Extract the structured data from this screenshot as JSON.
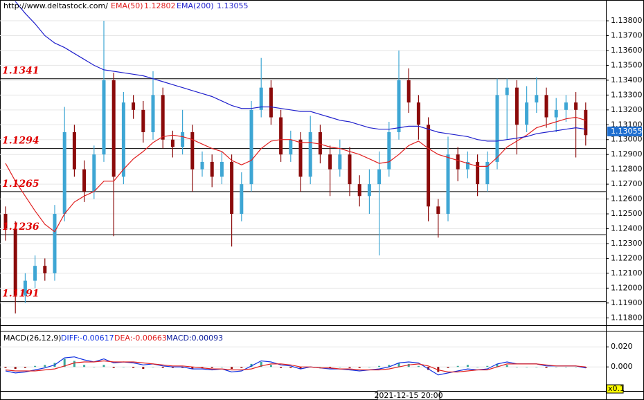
{
  "source": "http://www.deltastock.com/",
  "cursor_time": "2021-12-15 20:00",
  "chart_data": [
    {
      "type": "candlestick",
      "up_color": "#3ea6d4",
      "down_color": "#8b0a0a",
      "open": [
        1.125,
        1.124,
        1.1195,
        1.1205,
        1.1215,
        1.121,
        1.125,
        1.1305,
        1.128,
        1.1265,
        1.129,
        1.134,
        1.1275,
        1.1325,
        1.132,
        1.1305,
        1.133,
        1.13,
        1.1295,
        1.1305,
        1.128,
        1.1285,
        1.1275,
        1.1285,
        1.125,
        1.127,
        1.132,
        1.1335,
        1.1315,
        1.129,
        1.13,
        1.1275,
        1.1305,
        1.129,
        1.128,
        1.129,
        1.127,
        1.1262,
        1.127,
        1.128,
        1.1305,
        1.134,
        1.1325,
        1.131,
        1.1255,
        1.125,
        1.129,
        1.128,
        1.1285,
        1.127,
        1.1285,
        1.133,
        1.1335,
        1.131,
        1.1325,
        1.133,
        1.1315,
        1.132,
        1.1325,
        1.132
      ],
      "high": [
        1.1255,
        1.1245,
        1.121,
        1.1222,
        1.122,
        1.1256,
        1.1322,
        1.131,
        1.1286,
        1.1296,
        1.138,
        1.1345,
        1.1332,
        1.133,
        1.1326,
        1.1346,
        1.1335,
        1.1306,
        1.132,
        1.131,
        1.1292,
        1.129,
        1.1292,
        1.129,
        1.1278,
        1.1326,
        1.1355,
        1.134,
        1.132,
        1.1306,
        1.1305,
        1.1316,
        1.131,
        1.1296,
        1.13,
        1.1295,
        1.1276,
        1.128,
        1.1292,
        1.1312,
        1.136,
        1.1348,
        1.133,
        1.1315,
        1.126,
        1.1302,
        1.1295,
        1.1292,
        1.129,
        1.1292,
        1.1341,
        1.1341,
        1.134,
        1.1336,
        1.1342,
        1.1335,
        1.1328,
        1.133,
        1.1332,
        1.1325
      ],
      "low": [
        1.1232,
        1.1183,
        1.119,
        1.12,
        1.1205,
        1.1205,
        1.1245,
        1.1275,
        1.1258,
        1.126,
        1.1285,
        1.1235,
        1.127,
        1.1314,
        1.1298,
        1.13,
        1.1294,
        1.1288,
        1.129,
        1.1265,
        1.1275,
        1.1268,
        1.127,
        1.1228,
        1.1245,
        1.1265,
        1.1315,
        1.131,
        1.1285,
        1.1285,
        1.1265,
        1.127,
        1.1284,
        1.1262,
        1.1275,
        1.1262,
        1.1255,
        1.125,
        1.1222,
        1.1275,
        1.13,
        1.1318,
        1.13,
        1.1245,
        1.1234,
        1.1245,
        1.1272,
        1.1274,
        1.1262,
        1.1265,
        1.128,
        1.13,
        1.129,
        1.1305,
        1.1318,
        1.1308,
        1.1305,
        1.1312,
        1.1288,
        1.1296
      ],
      "close": [
        1.124,
        1.1195,
        1.1205,
        1.1215,
        1.121,
        1.125,
        1.1305,
        1.128,
        1.1265,
        1.129,
        1.134,
        1.1275,
        1.1325,
        1.132,
        1.1305,
        1.133,
        1.13,
        1.1295,
        1.1305,
        1.128,
        1.1285,
        1.1275,
        1.1285,
        1.125,
        1.127,
        1.132,
        1.1335,
        1.1315,
        1.129,
        1.13,
        1.1275,
        1.1305,
        1.129,
        1.128,
        1.129,
        1.127,
        1.1262,
        1.127,
        1.128,
        1.1305,
        1.134,
        1.1325,
        1.131,
        1.1255,
        1.125,
        1.129,
        1.128,
        1.1285,
        1.127,
        1.1285,
        1.133,
        1.1335,
        1.131,
        1.1325,
        1.133,
        1.1315,
        1.132,
        1.1325,
        1.132,
        1.1303
      ],
      "series": [
        {
          "name": "EMA(50)",
          "legend_value": "1.12802",
          "color": "#e02020",
          "values": [
            1.1284,
            1.1272,
            1.1262,
            1.1252,
            1.1243,
            1.1238,
            1.125,
            1.1258,
            1.1262,
            1.1265,
            1.1272,
            1.1272,
            1.128,
            1.1287,
            1.1292,
            1.1298,
            1.1302,
            1.1303,
            1.1302,
            1.13,
            1.1297,
            1.1294,
            1.1292,
            1.1286,
            1.1283,
            1.1286,
            1.1294,
            1.1299,
            1.13,
            1.13,
            1.1298,
            1.1298,
            1.1297,
            1.1295,
            1.1294,
            1.1292,
            1.129,
            1.1287,
            1.1284,
            1.1285,
            1.129,
            1.1296,
            1.1299,
            1.1294,
            1.129,
            1.1288,
            1.1286,
            1.1284,
            1.1282,
            1.1282,
            1.1288,
            1.1295,
            1.1299,
            1.1303,
            1.1308,
            1.131,
            1.1312,
            1.1314,
            1.1315,
            1.1313
          ]
        },
        {
          "name": "EMA(200)",
          "legend_value": "1.13055",
          "color": "#2020cc",
          "values": [
            null,
            1.1393,
            1.1385,
            1.1378,
            1.137,
            1.1365,
            1.1362,
            1.1358,
            1.1354,
            1.135,
            1.1347,
            1.1346,
            1.1345,
            1.1344,
            1.1343,
            1.1341,
            1.1339,
            1.1337,
            1.1335,
            1.1333,
            1.1331,
            1.1329,
            1.1326,
            1.1323,
            1.1321,
            1.1321,
            1.1322,
            1.1322,
            1.1321,
            1.132,
            1.1319,
            1.1319,
            1.1317,
            1.1315,
            1.1313,
            1.1312,
            1.131,
            1.1308,
            1.1307,
            1.1307,
            1.1308,
            1.1309,
            1.1309,
            1.1307,
            1.1305,
            1.1304,
            1.1303,
            1.1302,
            1.13,
            1.1299,
            1.1299,
            1.13,
            1.1301,
            1.1302,
            1.1304,
            1.1305,
            1.1306,
            1.1307,
            1.1308,
            1.1307
          ]
        }
      ],
      "levels": [
        1.1341,
        1.1294,
        1.1265,
        1.1236,
        1.1191
      ],
      "last_price": 1.13055,
      "ylim": [
        1.1175,
        1.1394
      ],
      "yticks": [
        {
          "value": 1.118,
          "label": "1.11800"
        },
        {
          "value": 1.119,
          "label": "1.11900"
        },
        {
          "value": 1.12,
          "label": "1.12000"
        },
        {
          "value": 1.121,
          "label": "1.12100"
        },
        {
          "value": 1.122,
          "label": "1.12200"
        },
        {
          "value": 1.123,
          "label": "1.12300"
        },
        {
          "value": 1.124,
          "label": "1.12400"
        },
        {
          "value": 1.125,
          "label": "1.12500"
        },
        {
          "value": 1.126,
          "label": "1.12600"
        },
        {
          "value": 1.127,
          "label": "1.12700"
        },
        {
          "value": 1.128,
          "label": "1.12800"
        },
        {
          "value": 1.129,
          "label": "1.12900"
        },
        {
          "value": 1.13,
          "label": "1.13000"
        },
        {
          "value": 1.131,
          "label": "1.13100"
        },
        {
          "value": 1.132,
          "label": "1.13200"
        },
        {
          "value": 1.133,
          "label": "1.13300"
        },
        {
          "value": 1.134,
          "label": "1.13400"
        },
        {
          "value": 1.135,
          "label": "1.13500"
        },
        {
          "value": 1.136,
          "label": "1.13600"
        },
        {
          "value": 1.137,
          "label": "1.13700"
        },
        {
          "value": 1.138,
          "label": "1.13800"
        }
      ],
      "grid": true
    },
    {
      "type": "macd",
      "title": "MACD(26,12,9)",
      "scale_label": "x0.1",
      "series": [
        {
          "legend": "DIFF:-0.00617",
          "color": "#1030e0",
          "values": [
            -0.004,
            -0.006,
            -0.005,
            -0.003,
            -0.001,
            0.002,
            0.009,
            0.01,
            0.007,
            0.005,
            0.008,
            0.004,
            0.005,
            0.004,
            0.002,
            0.003,
            0.001,
            0.0,
            0.0,
            -0.002,
            -0.002,
            -0.003,
            -0.002,
            -0.005,
            -0.004,
            0.001,
            0.006,
            0.005,
            0.002,
            0.001,
            -0.002,
            0.0,
            -0.001,
            -0.002,
            -0.002,
            -0.003,
            -0.004,
            -0.003,
            -0.002,
            0.0,
            0.004,
            0.005,
            0.004,
            -0.002,
            -0.008,
            -0.006,
            -0.004,
            -0.002,
            -0.003,
            -0.002,
            0.003,
            0.005,
            0.003,
            0.003,
            0.003,
            0.001,
            0.001,
            0.001,
            0.001,
            -0.001
          ]
        },
        {
          "legend": "DEA:-0.00663",
          "color": "#e02020",
          "values": [
            -0.003,
            -0.004,
            -0.004,
            -0.004,
            -0.003,
            -0.002,
            0.001,
            0.004,
            0.005,
            0.005,
            0.006,
            0.005,
            0.005,
            0.005,
            0.004,
            0.003,
            0.002,
            0.001,
            0.001,
            0.0,
            -0.001,
            -0.002,
            -0.002,
            -0.003,
            -0.003,
            -0.002,
            0.001,
            0.003,
            0.003,
            0.002,
            0.0,
            0.0,
            -0.001,
            -0.001,
            -0.002,
            -0.002,
            -0.003,
            -0.003,
            -0.003,
            -0.002,
            0.0,
            0.002,
            0.003,
            0.001,
            -0.003,
            -0.005,
            -0.005,
            -0.004,
            -0.003,
            -0.003,
            0.0,
            0.003,
            0.003,
            0.003,
            0.003,
            0.002,
            0.001,
            0.001,
            0.001,
            0.0
          ]
        },
        {
          "legend": "MACD:0.00093",
          "color": "#0a1a9a",
          "up_color": "#3aa89a",
          "down_color": "#9a1010",
          "values": [
            -0.001,
            -0.002,
            -0.001,
            0.001,
            0.002,
            0.004,
            0.008,
            0.006,
            0.002,
            0.0,
            0.002,
            -0.001,
            0.0,
            -0.001,
            -0.002,
            0.0,
            -0.001,
            -0.001,
            -0.001,
            -0.002,
            -0.001,
            -0.001,
            0.0,
            -0.002,
            -0.001,
            0.003,
            0.005,
            0.002,
            -0.001,
            -0.001,
            -0.002,
            0.0,
            0.0,
            -0.001,
            0.0,
            -0.001,
            -0.001,
            0.0,
            0.001,
            0.002,
            0.004,
            0.003,
            0.001,
            -0.003,
            -0.005,
            -0.001,
            0.001,
            0.002,
            0.0,
            0.001,
            0.003,
            0.002,
            0.0,
            0.0,
            0.0,
            -0.001,
            0.0,
            0.0,
            0.0,
            -0.001
          ]
        }
      ],
      "ylim": [
        -0.024,
        0.036
      ],
      "yticks": [
        {
          "value": 0.02,
          "label": "0.020"
        },
        {
          "value": 0,
          "label": "0.000"
        }
      ],
      "grid": true
    }
  ]
}
